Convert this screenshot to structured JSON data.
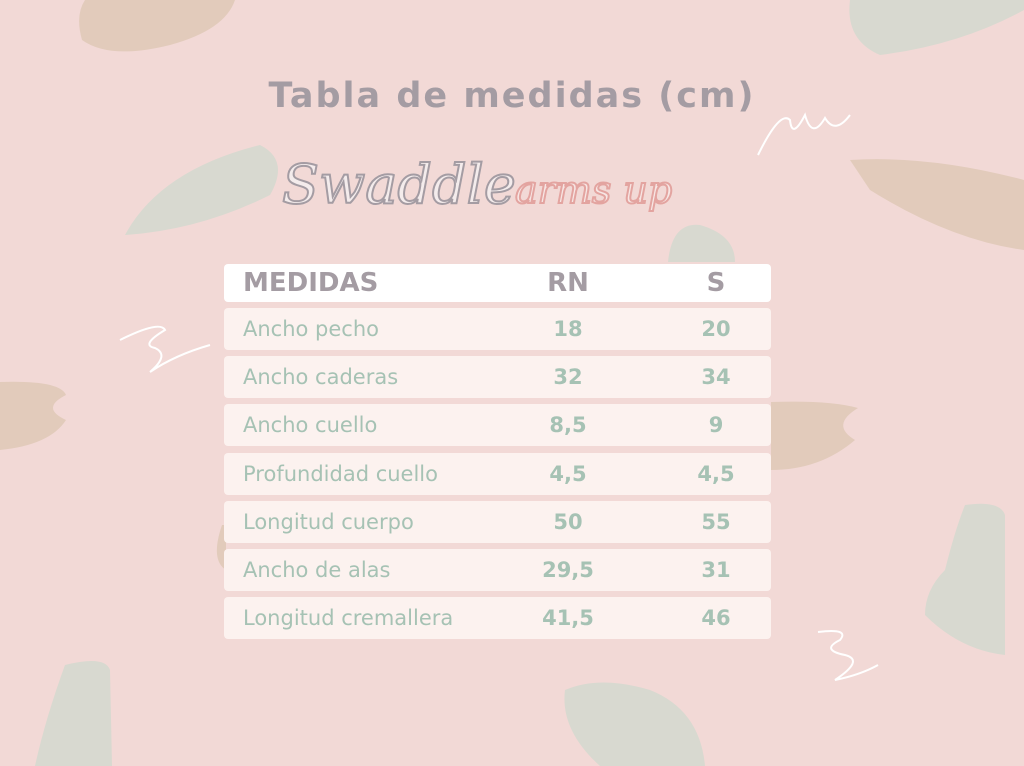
{
  "title": "Tabla de medidas (cm)",
  "subtitle": {
    "part1": "Swaddle",
    "part2": "arms up"
  },
  "colors": {
    "background": "#f2d9d6",
    "title": "#a49ca3",
    "values": "#a6c2b4",
    "accent_pink": "#e3a4a0",
    "blob_sage": "#d8d9d0",
    "blob_beige": "#e2cbbb"
  },
  "table": {
    "headers": [
      "MEDIDAS",
      "RN",
      "S"
    ],
    "rows": [
      {
        "label": "Ancho pecho",
        "rn": "18",
        "s": "20"
      },
      {
        "label": "Ancho caderas",
        "rn": "32",
        "s": "34"
      },
      {
        "label": "Ancho cuello",
        "rn": "8,5",
        "s": "9"
      },
      {
        "label": "Profundidad cuello",
        "rn": "4,5",
        "s": "4,5"
      },
      {
        "label": "Longitud cuerpo",
        "rn": "50",
        "s": "55"
      },
      {
        "label": "Ancho de alas",
        "rn": "29,5",
        "s": "31"
      },
      {
        "label": "Longitud cremallera",
        "rn": "41,5",
        "s": "46"
      }
    ]
  }
}
